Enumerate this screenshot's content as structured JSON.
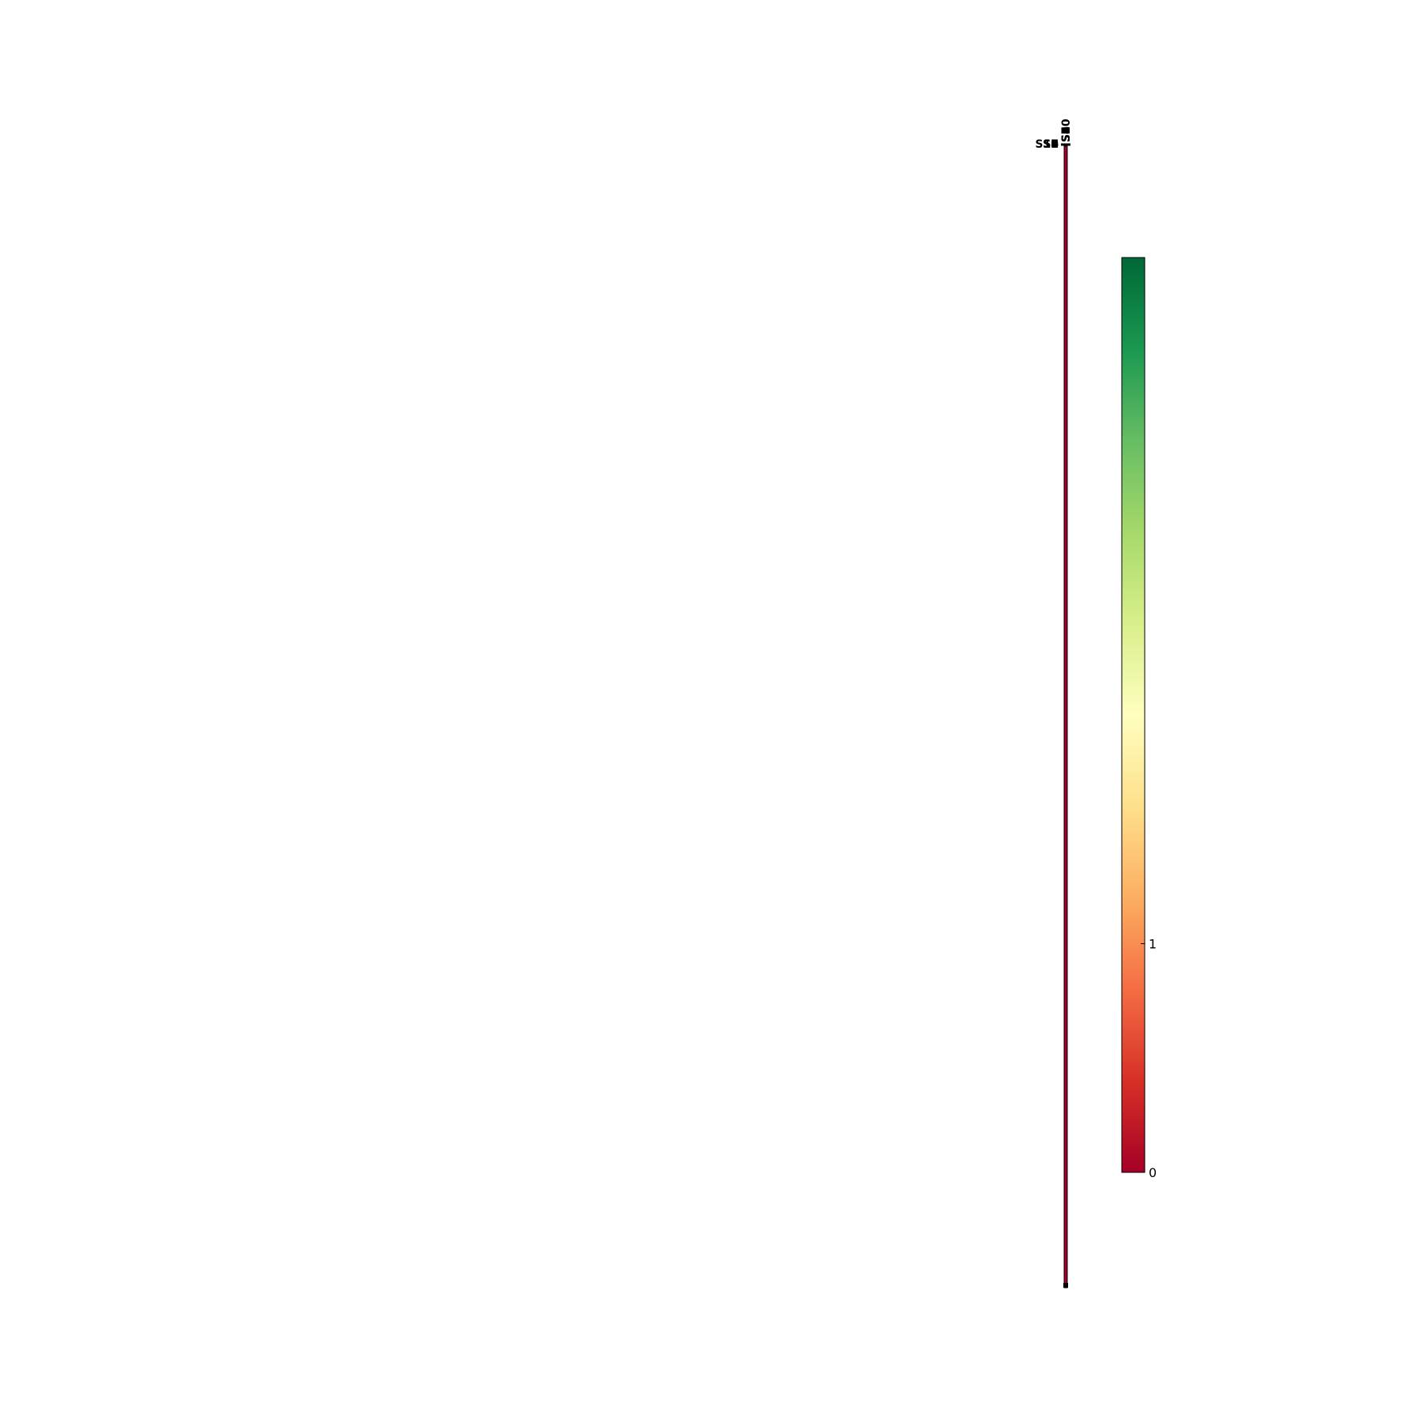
{
  "chart_data": {
    "type": "heatmap",
    "title": "",
    "xlabel": "",
    "ylabel": "",
    "x_tick_labels": [
      "S1",
      "S2",
      "S3",
      "S4",
      "S5",
      "S6",
      "S7",
      "S8",
      "S9",
      "S10"
    ],
    "y_tick_labels": [
      "S1",
      "S2",
      "S3",
      "S4",
      "S5",
      "S6",
      "S7",
      "S8",
      "S9",
      "S10"
    ],
    "cell_value": 0,
    "colormap": [
      "#a50026",
      "#d73027",
      "#f46d43",
      "#fdae61",
      "#fee08b",
      "#ffffbf",
      "#d9ef8b",
      "#a6d96a",
      "#66bd63",
      "#1a9850",
      "#006837"
    ],
    "colorbar": {
      "vmin": 0,
      "vmax": 4,
      "tick_values": [
        0,
        1
      ],
      "tick_labels": [
        "0",
        "1"
      ]
    },
    "grid": false,
    "legend": "none"
  },
  "colors": {
    "frame": "#000000",
    "background": "#ffffff"
  }
}
